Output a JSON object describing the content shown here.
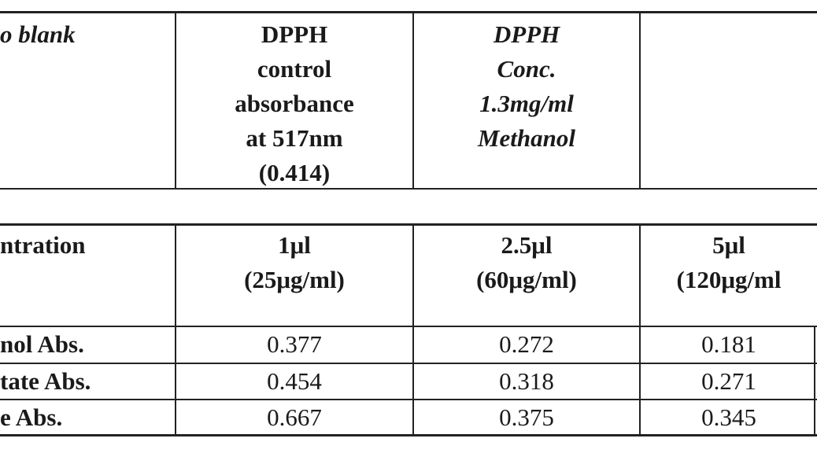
{
  "top_table": {
    "cells": [
      {
        "lines": [
          "o blank"
        ]
      },
      {
        "lines": [
          "DPPH",
          "control",
          "absorbance",
          "at 517nm",
          "(0.414)"
        ]
      },
      {
        "lines": [
          "DPPH",
          "Conc.",
          "1.3mg/ml",
          "Methanol"
        ]
      }
    ]
  },
  "bottom_table": {
    "header": [
      {
        "lines": [
          "ntration"
        ]
      },
      {
        "lines": [
          "1μl",
          "(25μg/ml)"
        ]
      },
      {
        "lines": [
          "2.5μl",
          "(60μg/ml)"
        ]
      },
      {
        "lines": [
          "5μl",
          "(120μg/ml"
        ]
      }
    ],
    "rows": [
      [
        "nol Abs.",
        "0.377",
        "0.272",
        "0.181"
      ],
      [
        "tate Abs.",
        "0.454",
        "0.318",
        "0.271"
      ],
      [
        "e Abs.",
        "0.667",
        "0.375",
        "0.345"
      ]
    ]
  }
}
